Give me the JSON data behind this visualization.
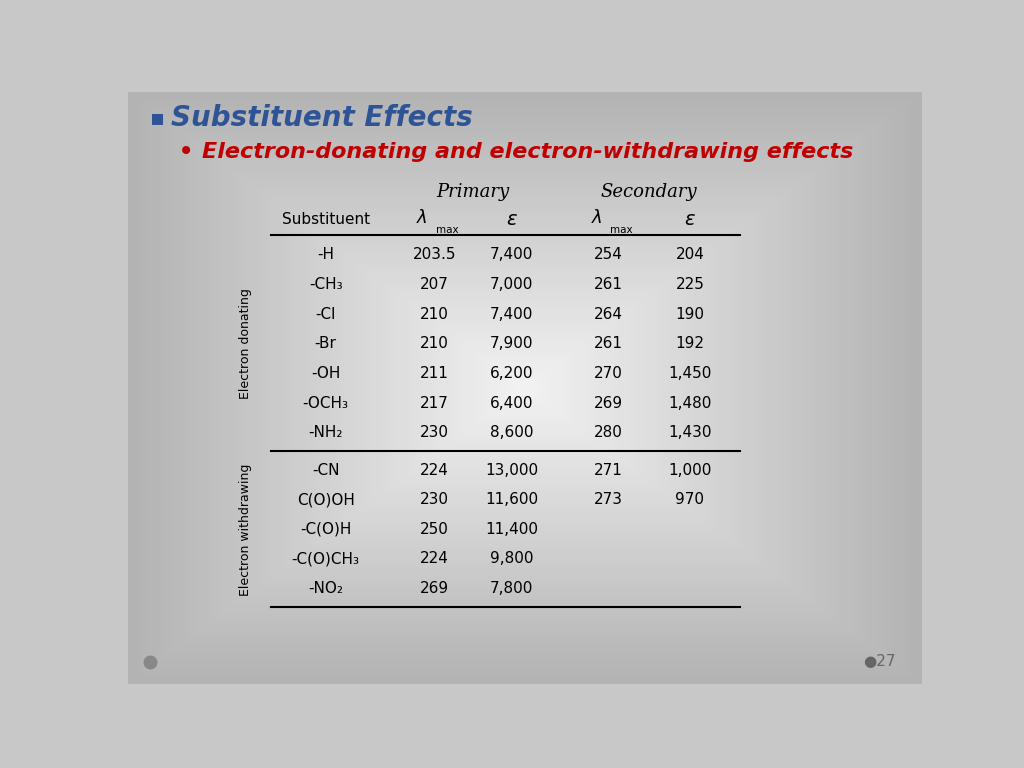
{
  "title": "Substituent Effects",
  "subtitle": "Electron-donating and electron-withdrawing effects",
  "title_color": "#2F5496",
  "subtitle_color": "#C00000",
  "header_group1": "Primary",
  "header_group2": "Secondary",
  "electron_donating_label": "Electron donating",
  "electron_withdrawing_label": "Electron withdrawing",
  "rows_donating": [
    [
      "-H",
      "203.5",
      "7,400",
      "254",
      "204"
    ],
    [
      "-CH₃",
      "207",
      "7,000",
      "261",
      "225"
    ],
    [
      "-Cl",
      "210",
      "7,400",
      "264",
      "190"
    ],
    [
      "-Br",
      "210",
      "7,900",
      "261",
      "192"
    ],
    [
      "-OH",
      "211",
      "6,200",
      "270",
      "1,450"
    ],
    [
      "-OCH₃",
      "217",
      "6,400",
      "269",
      "1,480"
    ],
    [
      "-NH₂",
      "230",
      "8,600",
      "280",
      "1,430"
    ]
  ],
  "rows_withdrawing": [
    [
      "-CN",
      "224",
      "13,000",
      "271",
      "1,000"
    ],
    [
      "C(O)OH",
      "230",
      "11,600",
      "273",
      "970"
    ],
    [
      "-C(O)H",
      "250",
      "11,400",
      "",
      ""
    ],
    [
      "-C(O)CH₃",
      "224",
      "9,800",
      "",
      ""
    ],
    [
      "-NO₂",
      "269",
      "7,800",
      "",
      ""
    ]
  ],
  "page_number": "27"
}
